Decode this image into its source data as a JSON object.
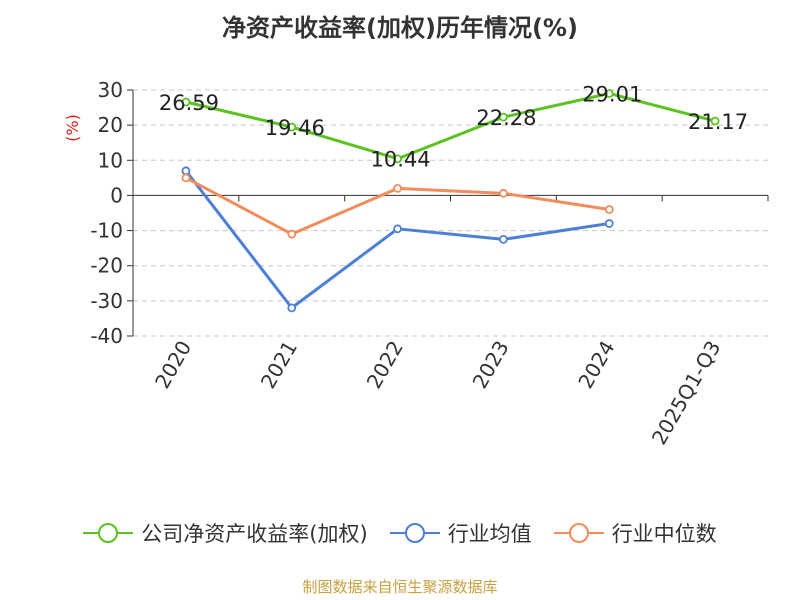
{
  "chart_data": {
    "type": "line",
    "title": "净资产收益率(加权)历年情况(%)",
    "ylabel": "(%)",
    "categories": [
      "2020",
      "2021",
      "2022",
      "2023",
      "2024",
      "2025Q1-Q3"
    ],
    "ylim": [
      -40,
      30
    ],
    "yticks": [
      30,
      20,
      10,
      0,
      -10,
      -20,
      -30,
      -40
    ],
    "grid": true,
    "legend_position": "bottom",
    "series": [
      {
        "name": "公司净资产收益率(加权)",
        "color": "#5ac321",
        "values": [
          26.59,
          19.46,
          10.44,
          22.28,
          29.01,
          21.17
        ],
        "labels": [
          "26.59",
          "19.46",
          "10.44",
          "22.28",
          "29.01",
          "21.17"
        ]
      },
      {
        "name": "行业均值",
        "color": "#4e7fd6",
        "values": [
          7.0,
          -32.0,
          -9.5,
          -12.5,
          -8.0,
          null
        ]
      },
      {
        "name": "行业中位数",
        "color": "#f28c5a",
        "values": [
          5.0,
          -11.0,
          2.0,
          0.6,
          -4.0,
          null
        ]
      }
    ]
  },
  "source_note": "制图数据来自恒生聚源数据库"
}
